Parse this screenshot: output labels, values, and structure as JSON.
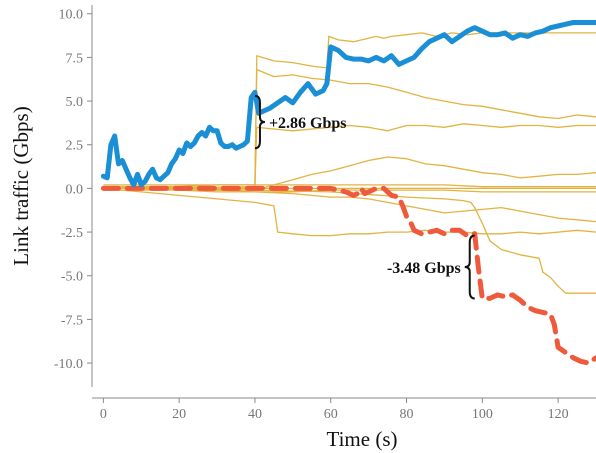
{
  "chart_data": {
    "type": "line",
    "title": "",
    "xlabel": "Time (s)",
    "ylabel": "Link traffic (Gbps)",
    "xlim": [
      -3,
      130
    ],
    "ylim": [
      -12,
      10.5
    ],
    "x_ticks": [
      0,
      20,
      40,
      60,
      80,
      100,
      120
    ],
    "y_ticks": [
      10.0,
      7.5,
      5.0,
      2.5,
      0.0,
      -2.5,
      -5.0,
      -7.5,
      -10.0
    ],
    "x_tick_labels": [
      "0",
      "20",
      "40",
      "60",
      "80",
      "100",
      "120"
    ],
    "y_tick_labels": [
      "10.0",
      "7.5",
      "5.0",
      "2.5",
      "0.0",
      "-2.5",
      "-5.0",
      "-7.5",
      "-10.0"
    ],
    "grid": false,
    "legend": "none",
    "colors": {
      "highlight_up": "#1a8fd6",
      "highlight_down": "#f05a3c",
      "background_lines": "#e2b341"
    },
    "series": [
      {
        "role": "highlight-up",
        "x": [
          0,
          1,
          2,
          3,
          4,
          5,
          6,
          7,
          8,
          9,
          10,
          11,
          12,
          13,
          14,
          15,
          16,
          17,
          18,
          19,
          20,
          21,
          22,
          23,
          24,
          25,
          26,
          27,
          28,
          29,
          30,
          31,
          32,
          33,
          34,
          35,
          36,
          37,
          38,
          39,
          40,
          41,
          42,
          44,
          46,
          48,
          50,
          52,
          54,
          56,
          58,
          59,
          60,
          62,
          64,
          66,
          68,
          70,
          72,
          74,
          76,
          78,
          80,
          82,
          84,
          86,
          88,
          90,
          92,
          94,
          96,
          98,
          100,
          102,
          104,
          106,
          108,
          110,
          112,
          114,
          116,
          118,
          120,
          122,
          124,
          126,
          128,
          130
        ],
        "y": [
          0.7,
          0.6,
          2.5,
          3.0,
          1.4,
          1.6,
          1.1,
          0.6,
          0.2,
          0.8,
          0.2,
          0.4,
          0.8,
          1.1,
          0.6,
          0.5,
          0.7,
          0.9,
          1.4,
          1.7,
          2.2,
          2.0,
          2.6,
          2.4,
          2.6,
          3.0,
          3.2,
          3.0,
          3.5,
          3.3,
          3.3,
          2.6,
          2.4,
          2.4,
          2.5,
          2.3,
          2.4,
          2.5,
          2.7,
          5.2,
          5.5,
          4.3,
          4.4,
          4.6,
          4.9,
          5.2,
          4.9,
          5.5,
          6.0,
          5.4,
          5.6,
          6.0,
          8.1,
          7.9,
          7.5,
          7.4,
          7.4,
          7.3,
          7.5,
          7.3,
          7.6,
          7.1,
          7.3,
          7.5,
          8.0,
          8.4,
          8.6,
          8.8,
          8.4,
          8.7,
          9.0,
          9.2,
          9.0,
          8.8,
          8.8,
          8.9,
          8.6,
          8.8,
          8.7,
          8.9,
          9.0,
          9.2,
          9.3,
          9.4,
          9.5,
          9.5,
          9.5,
          9.5
        ]
      },
      {
        "role": "highlight-down",
        "x": [
          0,
          5,
          10,
          15,
          20,
          25,
          30,
          35,
          40,
          45,
          50,
          55,
          60,
          62,
          64,
          66,
          67,
          68,
          69,
          70,
          72,
          74,
          76,
          78,
          79,
          80,
          81,
          82,
          84,
          86,
          88,
          90,
          92,
          94,
          96,
          97,
          98,
          99,
          100,
          102,
          104,
          106,
          108,
          110,
          112,
          114,
          116,
          118,
          119,
          120,
          122,
          124,
          126,
          128,
          130
        ],
        "y": [
          0.0,
          0.0,
          0.0,
          0.0,
          0.0,
          0.0,
          0.0,
          0.0,
          0.0,
          0.0,
          0.0,
          0.0,
          0.0,
          -0.1,
          -0.2,
          -0.4,
          -0.3,
          0.0,
          -0.3,
          -0.2,
          0.0,
          0.0,
          -0.4,
          -0.5,
          -1.0,
          -1.6,
          -1.9,
          -2.4,
          -2.6,
          -2.5,
          -2.4,
          -2.6,
          -2.4,
          -2.4,
          -2.7,
          -2.6,
          -2.6,
          -4.6,
          -6.3,
          -6.3,
          -6.1,
          -6.2,
          -6.1,
          -6.4,
          -6.8,
          -7.0,
          -7.1,
          -7.2,
          -7.8,
          -9.1,
          -9.4,
          -9.7,
          -9.9,
          -10.0,
          -9.7
        ]
      },
      {
        "role": "background",
        "x": [
          0,
          40,
          40.5,
          45,
          50,
          55,
          60,
          65,
          70,
          75,
          80,
          85,
          90,
          95,
          100,
          105,
          110,
          115,
          120,
          125,
          130
        ],
        "y": [
          0.0,
          0.1,
          3.5,
          3.4,
          3.3,
          3.4,
          3.5,
          3.6,
          3.5,
          3.3,
          3.6,
          3.6,
          3.5,
          3.7,
          3.6,
          3.5,
          3.6,
          3.6,
          3.5,
          3.6,
          3.6
        ]
      },
      {
        "role": "background",
        "x": [
          0,
          40,
          40.5,
          45,
          50,
          55,
          60,
          65,
          70,
          75,
          80,
          85,
          90,
          95,
          100,
          105,
          110,
          115,
          120,
          125,
          130
        ],
        "y": [
          0.2,
          0.2,
          6.8,
          6.4,
          6.5,
          6.3,
          6.2,
          6.0,
          6.0,
          5.8,
          5.5,
          5.2,
          5.0,
          4.8,
          4.7,
          4.5,
          4.3,
          4.1,
          4.0,
          4.2,
          4.1
        ]
      },
      {
        "role": "background",
        "x": [
          0,
          40,
          40.5,
          45,
          50,
          55,
          59,
          59.5,
          62,
          66,
          70,
          72,
          74,
          76,
          80,
          84,
          88,
          92,
          96,
          100,
          104,
          108,
          112,
          116,
          120,
          124,
          128,
          130
        ],
        "y": [
          0.0,
          0.0,
          7.6,
          7.3,
          7.2,
          7.0,
          6.9,
          8.7,
          8.5,
          8.4,
          8.6,
          8.7,
          8.6,
          8.7,
          8.8,
          8.9,
          8.7,
          8.9,
          8.8,
          8.9,
          8.9,
          8.9,
          8.9,
          8.9,
          8.9,
          8.9,
          8.9,
          8.9
        ]
      },
      {
        "role": "background",
        "x": [
          0,
          20,
          40,
          60,
          80,
          100,
          120,
          130
        ],
        "y": [
          0.0,
          0.0,
          0.0,
          0.0,
          0.0,
          0.0,
          0.0,
          0.0
        ]
      },
      {
        "role": "background",
        "x": [
          0,
          10,
          20,
          30,
          40,
          50,
          60,
          70,
          80,
          90,
          100,
          110,
          120,
          130
        ],
        "y": [
          0.1,
          0.1,
          0.1,
          0.2,
          0.2,
          0.2,
          0.2,
          0.2,
          0.2,
          0.2,
          0.1,
          0.1,
          0.1,
          0.1
        ]
      },
      {
        "role": "background",
        "x": [
          0,
          10,
          20,
          30,
          40,
          45,
          50,
          55,
          60,
          65,
          70,
          75,
          80,
          85,
          90,
          95,
          100,
          105,
          110,
          115,
          120,
          125,
          130
        ],
        "y": [
          0.0,
          0.0,
          -0.1,
          -0.1,
          -0.1,
          0.2,
          0.5,
          0.8,
          1.0,
          1.3,
          1.6,
          1.8,
          1.7,
          1.4,
          1.3,
          1.1,
          0.9,
          0.8,
          0.6,
          0.7,
          0.8,
          0.8,
          0.9
        ]
      },
      {
        "role": "background",
        "x": [
          0,
          10,
          20,
          30,
          40,
          50,
          55,
          60,
          65,
          70,
          75,
          80,
          85,
          90,
          95,
          100,
          105,
          110,
          115,
          120,
          125,
          130
        ],
        "y": [
          0.0,
          0.0,
          -0.1,
          -0.1,
          -0.2,
          -0.3,
          -0.4,
          -0.5,
          -0.5,
          -0.6,
          -0.8,
          -1.0,
          -1.2,
          -1.4,
          -1.3,
          -1.2,
          -1.1,
          -1.3,
          -1.5,
          -1.7,
          -1.8,
          -1.9
        ]
      },
      {
        "role": "background",
        "x": [
          0,
          10,
          20,
          30,
          40,
          45,
          46,
          50,
          55,
          60,
          65,
          70,
          75,
          80,
          85,
          90,
          95,
          100,
          105,
          110,
          115,
          120,
          125,
          130
        ],
        "y": [
          0.0,
          -0.2,
          -0.4,
          -0.6,
          -0.8,
          -1.0,
          -2.5,
          -2.6,
          -2.7,
          -2.7,
          -2.6,
          -2.6,
          -2.5,
          -2.5,
          -2.4,
          -2.5,
          -2.5,
          -2.6,
          -2.6,
          -2.5,
          -2.6,
          -2.5,
          -2.4,
          -2.5
        ]
      },
      {
        "role": "background",
        "x": [
          0,
          20,
          40,
          60,
          80,
          90,
          95,
          97,
          98,
          100,
          102,
          105,
          110,
          115,
          116,
          118,
          120,
          122,
          125,
          128,
          130
        ],
        "y": [
          0.0,
          0.0,
          -0.1,
          -0.2,
          -0.5,
          -0.6,
          -0.7,
          -0.8,
          -1.1,
          -2.0,
          -3.0,
          -3.5,
          -3.8,
          -4.0,
          -4.8,
          -5.1,
          -5.6,
          -6.0,
          -6.0,
          -6.0,
          -6.0
        ]
      },
      {
        "role": "background",
        "x": [
          0,
          10,
          20,
          30,
          40,
          50,
          60,
          70,
          80,
          90,
          100,
          110,
          120,
          130
        ],
        "y": [
          -0.1,
          -0.1,
          -0.1,
          -0.2,
          -0.2,
          -0.2,
          -0.1,
          -0.1,
          -0.1,
          -0.1,
          -0.2,
          -0.2,
          -0.2,
          -0.2
        ]
      }
    ],
    "annotations": [
      {
        "text": "+2.86 Gbps",
        "x": 40,
        "y_from": 2.3,
        "y_to": 5.3,
        "side": "right"
      },
      {
        "text": "-3.48 Gbps",
        "x": 98,
        "y_from": -2.7,
        "y_to": -6.3,
        "side": "left"
      }
    ]
  }
}
